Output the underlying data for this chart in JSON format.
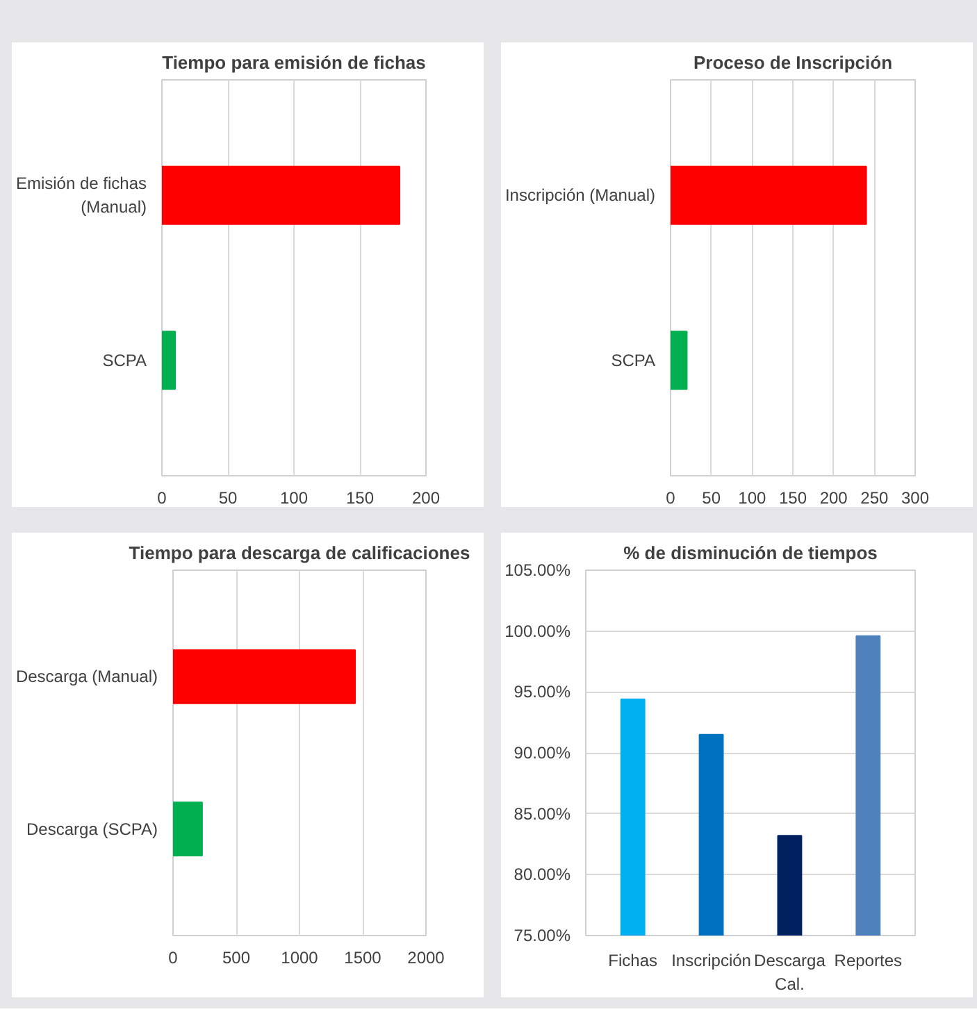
{
  "chart_data": [
    {
      "type": "bar",
      "orientation": "horizontal",
      "title": "Tiempo para emisión de fichas",
      "categories": [
        "Emisión de fichas (Manual)",
        "SCPA"
      ],
      "values": [
        180,
        10
      ],
      "colors": [
        "#ff0000",
        "#00b050"
      ],
      "xlim": [
        0,
        200
      ],
      "xticks": [
        0,
        50,
        100,
        150,
        200
      ],
      "grid": "x"
    },
    {
      "type": "bar",
      "orientation": "horizontal",
      "title": "Proceso de Inscripción",
      "categories": [
        "Inscripción (Manual)",
        "SCPA"
      ],
      "values": [
        240,
        20
      ],
      "colors": [
        "#ff0000",
        "#00b050"
      ],
      "xlim": [
        0,
        300
      ],
      "xticks": [
        0,
        50,
        100,
        150,
        200,
        250,
        300
      ],
      "grid": "x"
    },
    {
      "type": "bar",
      "orientation": "horizontal",
      "title": "Tiempo para descarga de calificaciones",
      "categories": [
        "Descarga (Manual)",
        "Descarga (SCPA)"
      ],
      "values": [
        1440,
        230
      ],
      "colors": [
        "#ff0000",
        "#00b050"
      ],
      "xlim": [
        0,
        2000
      ],
      "xticks": [
        0,
        500,
        1000,
        1500,
        2000
      ],
      "grid": "x"
    },
    {
      "type": "bar",
      "title": "% de disminución de tiempos",
      "categories": [
        "Fichas",
        "Inscripción",
        "Descarga Cal.",
        "Reportes"
      ],
      "values": [
        94.4,
        91.5,
        83.2,
        99.6
      ],
      "colors": [
        "#00b0f0",
        "#0070c0",
        "#002060",
        "#4f81bd"
      ],
      "ylim": [
        75,
        105
      ],
      "yticks": [
        {
          "value": 75,
          "label": "75.00%"
        },
        {
          "value": 80,
          "label": "80.00%"
        },
        {
          "value": 85,
          "label": "85.00%"
        },
        {
          "value": 90,
          "label": "90.00%"
        },
        {
          "value": 95,
          "label": "95.00%"
        },
        {
          "value": 100,
          "label": "100.00%"
        },
        {
          "value": 105,
          "label": "105.00%"
        }
      ],
      "grid": "y"
    }
  ]
}
